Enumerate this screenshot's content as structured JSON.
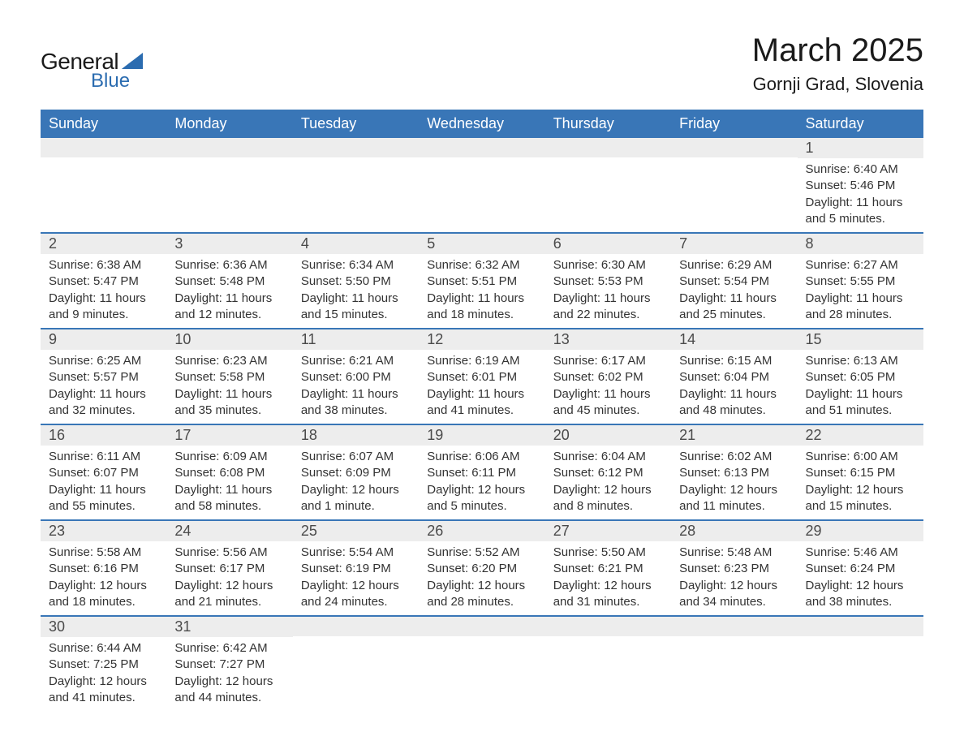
{
  "logo": {
    "text_general": "General",
    "text_blue": "Blue",
    "triangle_color": "#2b6cb0"
  },
  "header": {
    "month_title": "March 2025",
    "location": "Gornji Grad, Slovenia"
  },
  "colors": {
    "header_bg": "#3976b7",
    "header_text": "#ffffff",
    "daynum_bg": "#ededed",
    "body_text": "#333333",
    "row_divider": "#3976b7",
    "background": "#ffffff"
  },
  "typography": {
    "month_title_fontsize": 40,
    "location_fontsize": 22,
    "weekday_fontsize": 18,
    "daynum_fontsize": 18,
    "cell_fontsize": 15,
    "font_family": "Arial, Helvetica, sans-serif"
  },
  "weekdays": [
    "Sunday",
    "Monday",
    "Tuesday",
    "Wednesday",
    "Thursday",
    "Friday",
    "Saturday"
  ],
  "weeks": [
    [
      {
        "day": "",
        "sunrise": "",
        "sunset": "",
        "daylight": ""
      },
      {
        "day": "",
        "sunrise": "",
        "sunset": "",
        "daylight": ""
      },
      {
        "day": "",
        "sunrise": "",
        "sunset": "",
        "daylight": ""
      },
      {
        "day": "",
        "sunrise": "",
        "sunset": "",
        "daylight": ""
      },
      {
        "day": "",
        "sunrise": "",
        "sunset": "",
        "daylight": ""
      },
      {
        "day": "",
        "sunrise": "",
        "sunset": "",
        "daylight": ""
      },
      {
        "day": "1",
        "sunrise": "Sunrise: 6:40 AM",
        "sunset": "Sunset: 5:46 PM",
        "daylight": "Daylight: 11 hours and 5 minutes."
      }
    ],
    [
      {
        "day": "2",
        "sunrise": "Sunrise: 6:38 AM",
        "sunset": "Sunset: 5:47 PM",
        "daylight": "Daylight: 11 hours and 9 minutes."
      },
      {
        "day": "3",
        "sunrise": "Sunrise: 6:36 AM",
        "sunset": "Sunset: 5:48 PM",
        "daylight": "Daylight: 11 hours and 12 minutes."
      },
      {
        "day": "4",
        "sunrise": "Sunrise: 6:34 AM",
        "sunset": "Sunset: 5:50 PM",
        "daylight": "Daylight: 11 hours and 15 minutes."
      },
      {
        "day": "5",
        "sunrise": "Sunrise: 6:32 AM",
        "sunset": "Sunset: 5:51 PM",
        "daylight": "Daylight: 11 hours and 18 minutes."
      },
      {
        "day": "6",
        "sunrise": "Sunrise: 6:30 AM",
        "sunset": "Sunset: 5:53 PM",
        "daylight": "Daylight: 11 hours and 22 minutes."
      },
      {
        "day": "7",
        "sunrise": "Sunrise: 6:29 AM",
        "sunset": "Sunset: 5:54 PM",
        "daylight": "Daylight: 11 hours and 25 minutes."
      },
      {
        "day": "8",
        "sunrise": "Sunrise: 6:27 AM",
        "sunset": "Sunset: 5:55 PM",
        "daylight": "Daylight: 11 hours and 28 minutes."
      }
    ],
    [
      {
        "day": "9",
        "sunrise": "Sunrise: 6:25 AM",
        "sunset": "Sunset: 5:57 PM",
        "daylight": "Daylight: 11 hours and 32 minutes."
      },
      {
        "day": "10",
        "sunrise": "Sunrise: 6:23 AM",
        "sunset": "Sunset: 5:58 PM",
        "daylight": "Daylight: 11 hours and 35 minutes."
      },
      {
        "day": "11",
        "sunrise": "Sunrise: 6:21 AM",
        "sunset": "Sunset: 6:00 PM",
        "daylight": "Daylight: 11 hours and 38 minutes."
      },
      {
        "day": "12",
        "sunrise": "Sunrise: 6:19 AM",
        "sunset": "Sunset: 6:01 PM",
        "daylight": "Daylight: 11 hours and 41 minutes."
      },
      {
        "day": "13",
        "sunrise": "Sunrise: 6:17 AM",
        "sunset": "Sunset: 6:02 PM",
        "daylight": "Daylight: 11 hours and 45 minutes."
      },
      {
        "day": "14",
        "sunrise": "Sunrise: 6:15 AM",
        "sunset": "Sunset: 6:04 PM",
        "daylight": "Daylight: 11 hours and 48 minutes."
      },
      {
        "day": "15",
        "sunrise": "Sunrise: 6:13 AM",
        "sunset": "Sunset: 6:05 PM",
        "daylight": "Daylight: 11 hours and 51 minutes."
      }
    ],
    [
      {
        "day": "16",
        "sunrise": "Sunrise: 6:11 AM",
        "sunset": "Sunset: 6:07 PM",
        "daylight": "Daylight: 11 hours and 55 minutes."
      },
      {
        "day": "17",
        "sunrise": "Sunrise: 6:09 AM",
        "sunset": "Sunset: 6:08 PM",
        "daylight": "Daylight: 11 hours and 58 minutes."
      },
      {
        "day": "18",
        "sunrise": "Sunrise: 6:07 AM",
        "sunset": "Sunset: 6:09 PM",
        "daylight": "Daylight: 12 hours and 1 minute."
      },
      {
        "day": "19",
        "sunrise": "Sunrise: 6:06 AM",
        "sunset": "Sunset: 6:11 PM",
        "daylight": "Daylight: 12 hours and 5 minutes."
      },
      {
        "day": "20",
        "sunrise": "Sunrise: 6:04 AM",
        "sunset": "Sunset: 6:12 PM",
        "daylight": "Daylight: 12 hours and 8 minutes."
      },
      {
        "day": "21",
        "sunrise": "Sunrise: 6:02 AM",
        "sunset": "Sunset: 6:13 PM",
        "daylight": "Daylight: 12 hours and 11 minutes."
      },
      {
        "day": "22",
        "sunrise": "Sunrise: 6:00 AM",
        "sunset": "Sunset: 6:15 PM",
        "daylight": "Daylight: 12 hours and 15 minutes."
      }
    ],
    [
      {
        "day": "23",
        "sunrise": "Sunrise: 5:58 AM",
        "sunset": "Sunset: 6:16 PM",
        "daylight": "Daylight: 12 hours and 18 minutes."
      },
      {
        "day": "24",
        "sunrise": "Sunrise: 5:56 AM",
        "sunset": "Sunset: 6:17 PM",
        "daylight": "Daylight: 12 hours and 21 minutes."
      },
      {
        "day": "25",
        "sunrise": "Sunrise: 5:54 AM",
        "sunset": "Sunset: 6:19 PM",
        "daylight": "Daylight: 12 hours and 24 minutes."
      },
      {
        "day": "26",
        "sunrise": "Sunrise: 5:52 AM",
        "sunset": "Sunset: 6:20 PM",
        "daylight": "Daylight: 12 hours and 28 minutes."
      },
      {
        "day": "27",
        "sunrise": "Sunrise: 5:50 AM",
        "sunset": "Sunset: 6:21 PM",
        "daylight": "Daylight: 12 hours and 31 minutes."
      },
      {
        "day": "28",
        "sunrise": "Sunrise: 5:48 AM",
        "sunset": "Sunset: 6:23 PM",
        "daylight": "Daylight: 12 hours and 34 minutes."
      },
      {
        "day": "29",
        "sunrise": "Sunrise: 5:46 AM",
        "sunset": "Sunset: 6:24 PM",
        "daylight": "Daylight: 12 hours and 38 minutes."
      }
    ],
    [
      {
        "day": "30",
        "sunrise": "Sunrise: 6:44 AM",
        "sunset": "Sunset: 7:25 PM",
        "daylight": "Daylight: 12 hours and 41 minutes."
      },
      {
        "day": "31",
        "sunrise": "Sunrise: 6:42 AM",
        "sunset": "Sunset: 7:27 PM",
        "daylight": "Daylight: 12 hours and 44 minutes."
      },
      {
        "day": "",
        "sunrise": "",
        "sunset": "",
        "daylight": ""
      },
      {
        "day": "",
        "sunrise": "",
        "sunset": "",
        "daylight": ""
      },
      {
        "day": "",
        "sunrise": "",
        "sunset": "",
        "daylight": ""
      },
      {
        "day": "",
        "sunrise": "",
        "sunset": "",
        "daylight": ""
      },
      {
        "day": "",
        "sunrise": "",
        "sunset": "",
        "daylight": ""
      }
    ]
  ]
}
